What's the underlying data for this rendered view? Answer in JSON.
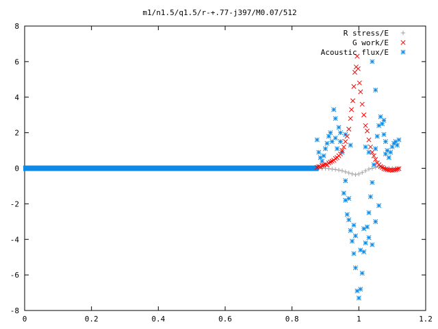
{
  "chart_data": {
    "type": "scatter",
    "title": "m1/n1.5/q1.5/r-+.77-j397/M0.07/512",
    "xlabel": "",
    "ylabel": "",
    "xlim": [
      0,
      1.2
    ],
    "ylim": [
      -8,
      8
    ],
    "x_ticks": [
      "0",
      "0.2",
      "0.4",
      "0.6",
      "0.8",
      "1",
      "1.2"
    ],
    "y_ticks": [
      "-8",
      "-6",
      "-4",
      "-2",
      "0",
      "2",
      "4",
      "6",
      "8"
    ],
    "grid": false,
    "legend_position": "top-right",
    "series": [
      {
        "name": "R stress/E",
        "color": "#a0a0a4",
        "marker": "plus",
        "baseline": {
          "x_from": 0.0,
          "x_to": 0.875,
          "y": 0.0
        },
        "points": [
          [
            0.88,
            0.0
          ],
          [
            0.89,
            0.0
          ],
          [
            0.9,
            0.0
          ],
          [
            0.91,
            -0.02
          ],
          [
            0.92,
            -0.05
          ],
          [
            0.93,
            -0.07
          ],
          [
            0.94,
            -0.1
          ],
          [
            0.95,
            -0.14
          ],
          [
            0.96,
            -0.2
          ],
          [
            0.97,
            -0.26
          ],
          [
            0.98,
            -0.32
          ],
          [
            0.99,
            -0.36
          ],
          [
            1.0,
            -0.32
          ],
          [
            1.01,
            -0.24
          ],
          [
            1.02,
            -0.14
          ],
          [
            1.03,
            -0.05
          ],
          [
            1.04,
            0.0
          ],
          [
            1.05,
            0.05
          ],
          [
            1.06,
            0.09
          ],
          [
            1.07,
            0.06
          ],
          [
            1.08,
            0.03
          ],
          [
            1.09,
            0.01
          ],
          [
            1.1,
            0.0
          ],
          [
            1.11,
            0.0
          ],
          [
            1.12,
            0.0
          ]
        ]
      },
      {
        "name": "G work/E",
        "color": "#ff0000",
        "marker": "cross",
        "points": [
          [
            0.875,
            0.05
          ],
          [
            0.88,
            0.1
          ],
          [
            0.885,
            0.08
          ],
          [
            0.89,
            0.15
          ],
          [
            0.895,
            0.18
          ],
          [
            0.9,
            0.22
          ],
          [
            0.905,
            0.2
          ],
          [
            0.91,
            0.3
          ],
          [
            0.915,
            0.35
          ],
          [
            0.92,
            0.4
          ],
          [
            0.925,
            0.45
          ],
          [
            0.93,
            0.55
          ],
          [
            0.935,
            0.6
          ],
          [
            0.94,
            0.7
          ],
          [
            0.945,
            0.8
          ],
          [
            0.95,
            1.0
          ],
          [
            0.955,
            1.2
          ],
          [
            0.96,
            1.5
          ],
          [
            0.965,
            1.8
          ],
          [
            0.97,
            2.2
          ],
          [
            0.975,
            2.8
          ],
          [
            0.978,
            3.3
          ],
          [
            0.982,
            3.8
          ],
          [
            0.985,
            4.6
          ],
          [
            0.988,
            5.4
          ],
          [
            0.992,
            5.7
          ],
          [
            0.995,
            6.3
          ],
          [
            0.998,
            5.6
          ],
          [
            1.002,
            4.8
          ],
          [
            1.005,
            4.3
          ],
          [
            1.01,
            3.6
          ],
          [
            1.015,
            3.0
          ],
          [
            1.02,
            2.4
          ],
          [
            1.025,
            2.1
          ],
          [
            1.03,
            1.6
          ],
          [
            1.035,
            1.2
          ],
          [
            1.04,
            0.9
          ],
          [
            1.045,
            0.7
          ],
          [
            1.05,
            0.5
          ],
          [
            1.055,
            0.3
          ],
          [
            1.06,
            0.2
          ],
          [
            1.065,
            0.1
          ],
          [
            1.07,
            0.05
          ],
          [
            1.075,
            -0.02
          ],
          [
            1.08,
            -0.05
          ],
          [
            1.085,
            -0.08
          ],
          [
            1.09,
            -0.1
          ],
          [
            1.095,
            -0.1
          ],
          [
            1.1,
            -0.12
          ],
          [
            1.105,
            -0.1
          ],
          [
            1.11,
            -0.08
          ],
          [
            1.115,
            -0.05
          ],
          [
            1.12,
            -0.02
          ]
        ]
      },
      {
        "name": "Acoustic flux/E",
        "color": "#0e8ae6",
        "marker": "star",
        "baseline": {
          "x_from": 0.0,
          "x_to": 0.875,
          "y": 0.0
        },
        "points": [
          [
            0.875,
            1.6
          ],
          [
            0.88,
            0.9
          ],
          [
            0.885,
            0.6
          ],
          [
            0.89,
            0.4
          ],
          [
            0.895,
            0.7
          ],
          [
            0.9,
            1.1
          ],
          [
            0.905,
            1.4
          ],
          [
            0.91,
            1.8
          ],
          [
            0.915,
            2.0
          ],
          [
            0.92,
            1.5
          ],
          [
            0.925,
            3.3
          ],
          [
            0.93,
            1.7
          ],
          [
            0.935,
            1.1
          ],
          [
            0.94,
            2.3
          ],
          [
            0.945,
            1.5
          ],
          [
            0.95,
            0.9
          ],
          [
            0.955,
            -1.4
          ],
          [
            0.96,
            -1.8
          ],
          [
            0.965,
            -2.6
          ],
          [
            0.97,
            -2.9
          ],
          [
            0.975,
            -3.5
          ],
          [
            0.98,
            -4.1
          ],
          [
            0.985,
            -4.8
          ],
          [
            0.99,
            -5.6
          ],
          [
            0.995,
            -6.9
          ],
          [
            1.0,
            -7.3
          ],
          [
            1.005,
            -6.8
          ],
          [
            1.01,
            -5.9
          ],
          [
            1.015,
            -4.7
          ],
          [
            1.02,
            -4.2
          ],
          [
            1.025,
            -3.3
          ],
          [
            1.03,
            -2.5
          ],
          [
            1.035,
            -1.6
          ],
          [
            1.04,
            -0.8
          ],
          [
            1.045,
            0.2
          ],
          [
            1.05,
            1.1
          ],
          [
            1.055,
            1.8
          ],
          [
            1.06,
            2.4
          ],
          [
            1.065,
            2.9
          ],
          [
            1.07,
            2.5
          ],
          [
            1.075,
            1.9
          ],
          [
            1.08,
            1.5
          ],
          [
            1.085,
            1.0
          ],
          [
            1.09,
            0.6
          ],
          [
            1.095,
            0.9
          ],
          [
            1.1,
            1.2
          ],
          [
            1.105,
            1.4
          ],
          [
            1.11,
            1.5
          ],
          [
            1.115,
            1.3
          ],
          [
            1.12,
            1.6
          ],
          [
            0.96,
            -0.7
          ],
          [
            0.97,
            -1.7
          ],
          [
            0.985,
            -3.2
          ],
          [
            0.99,
            -3.8
          ],
          [
            1.005,
            -4.6
          ],
          [
            1.015,
            -3.4
          ],
          [
            1.03,
            -3.9
          ],
          [
            1.04,
            -4.3
          ],
          [
            1.05,
            -3.0
          ],
          [
            1.06,
            -2.1
          ],
          [
            0.93,
            2.8
          ],
          [
            0.945,
            2.0
          ],
          [
            0.96,
            1.9
          ],
          [
            0.975,
            1.3
          ],
          [
            1.04,
            6.0
          ],
          [
            1.05,
            4.4
          ],
          [
            1.075,
            2.7
          ],
          [
            1.08,
            0.8
          ],
          [
            1.02,
            1.2
          ],
          [
            1.03,
            0.9
          ]
        ]
      }
    ]
  }
}
